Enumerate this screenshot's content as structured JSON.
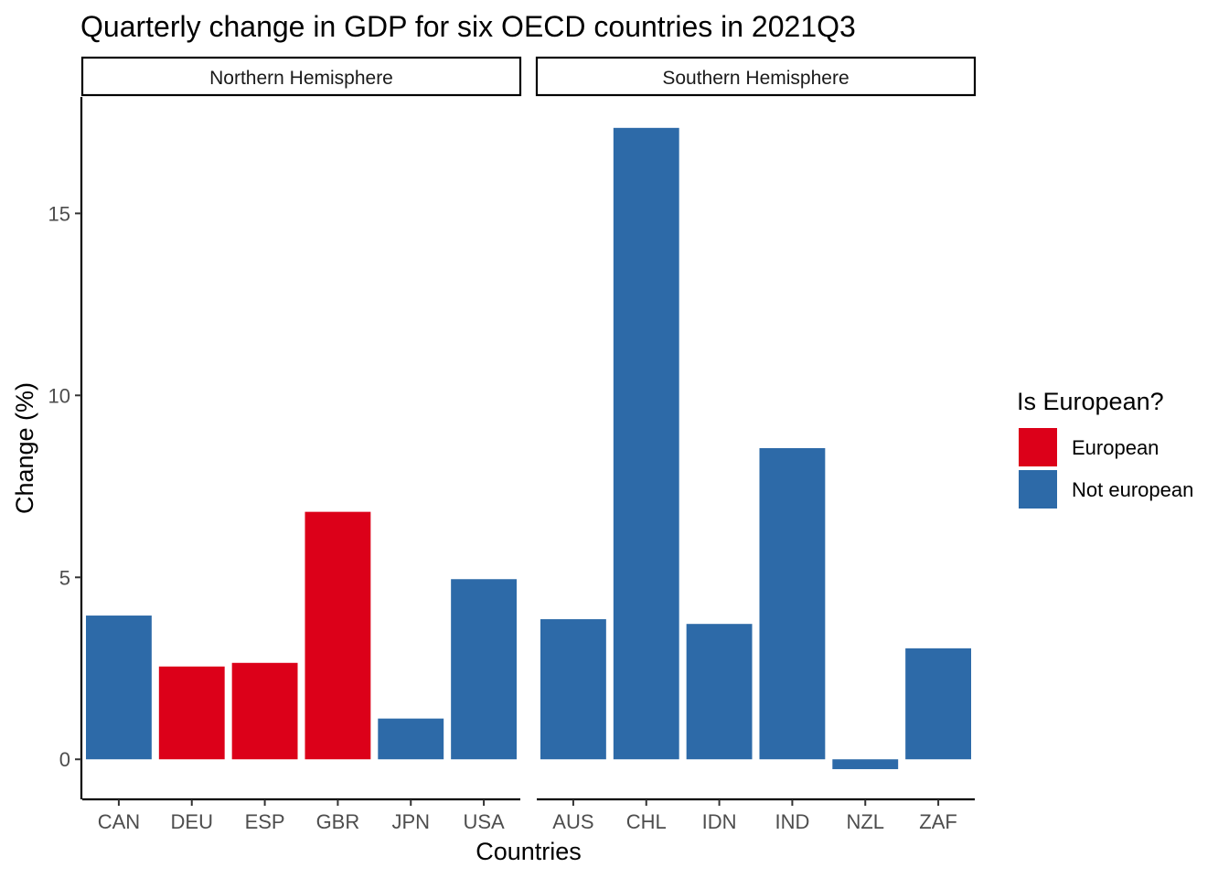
{
  "chart_data": {
    "type": "bar",
    "title": "Quarterly change in GDP for six OECD countries in 2021Q3",
    "xlabel": "Countries",
    "ylabel": "Change (%)",
    "ylim": [
      -1.1,
      18.2
    ],
    "yticks": [
      0,
      5,
      10,
      15
    ],
    "grid": false,
    "facets": [
      {
        "name": "Northern Hemisphere",
        "categories": [
          "CAN",
          "DEU",
          "ESP",
          "GBR",
          "JPN",
          "USA"
        ],
        "values": [
          3.95,
          2.55,
          2.65,
          6.8,
          1.12,
          4.95
        ],
        "groups": [
          "Not european",
          "European",
          "European",
          "European",
          "Not european",
          "Not european"
        ]
      },
      {
        "name": "Southern Hemisphere",
        "categories": [
          "AUS",
          "CHL",
          "IDN",
          "IND",
          "NZL",
          "ZAF"
        ],
        "values": [
          3.85,
          17.35,
          3.72,
          8.55,
          -0.27,
          3.05
        ],
        "groups": [
          "Not european",
          "Not european",
          "Not european",
          "Not european",
          "Not european",
          "Not european"
        ]
      }
    ],
    "legend": {
      "title": "Is European?",
      "placement": "right",
      "entries": [
        {
          "label": "European",
          "color": "#DC0019"
        },
        {
          "label": "Not european",
          "color": "#2D6AA8"
        }
      ]
    }
  }
}
